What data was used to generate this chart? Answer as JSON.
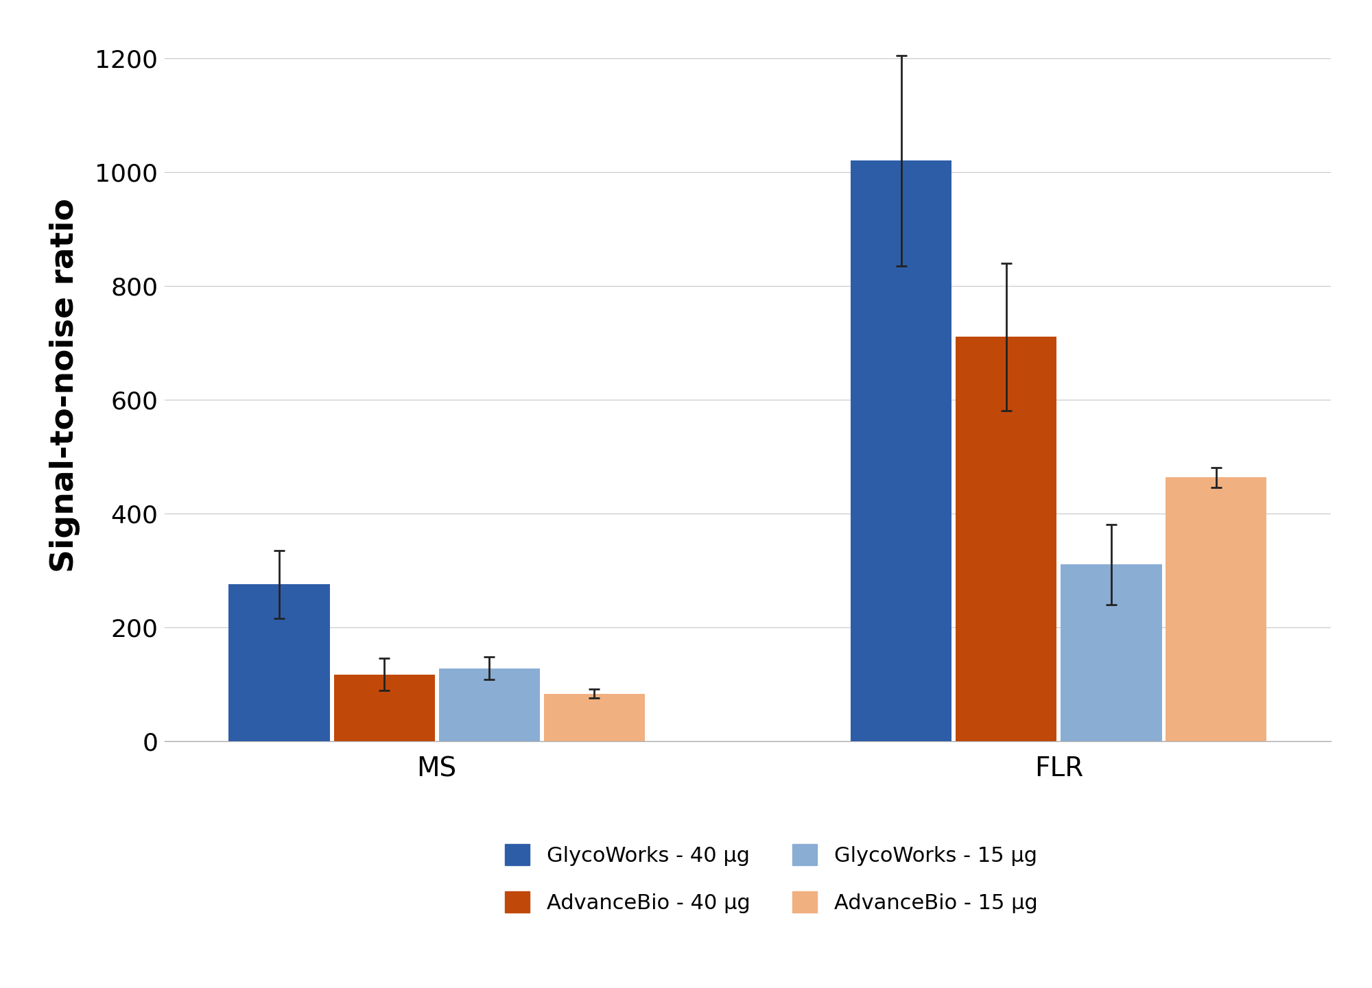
{
  "groups": [
    "MS",
    "FLR"
  ],
  "series": [
    {
      "label": "GlycoWorks - 40 μg",
      "color": "#2E5DA8",
      "values": [
        275,
        1020
      ],
      "errors": [
        60,
        185
      ]
    },
    {
      "label": "AdvanceBio - 40 μg",
      "color": "#C0490A",
      "values": [
        117,
        710
      ],
      "errors": [
        28,
        130
      ]
    },
    {
      "label": "GlycoWorks - 15 μg",
      "color": "#8AADD4",
      "values": [
        128,
        310
      ],
      "errors": [
        20,
        70
      ]
    },
    {
      "label": "AdvanceBio - 15 μg",
      "color": "#F0B080",
      "values": [
        83,
        463
      ],
      "errors": [
        8,
        18
      ]
    }
  ],
  "legend_order": [
    0,
    2,
    1,
    3
  ],
  "ylabel": "Signal-to-noise ratio",
  "ylim": [
    0,
    1250
  ],
  "yticks": [
    0,
    200,
    400,
    600,
    800,
    1000,
    1200
  ],
  "bar_width": 0.13,
  "group_centers": [
    0.25,
    1.05
  ],
  "background_color": "#ffffff",
  "grid_color": "#c8c8c8",
  "ylabel_fontsize": 34,
  "tick_fontsize": 26,
  "legend_fontsize": 22,
  "xtick_fontsize": 28
}
